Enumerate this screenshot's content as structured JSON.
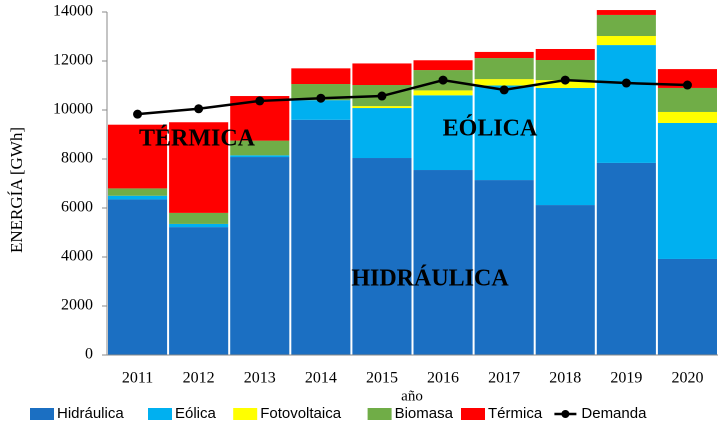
{
  "chart_data": {
    "type": "bar",
    "stacked": true,
    "y_label": "ENERGÍA [GWh]",
    "x_label": "año",
    "categories": [
      "2011",
      "2012",
      "2013",
      "2014",
      "2015",
      "2016",
      "2017",
      "2018",
      "2019",
      "2020"
    ],
    "series": [
      {
        "name": "Hidráulica",
        "color": "#1b6fc2",
        "values": [
          6350,
          5220,
          8080,
          9600,
          8040,
          7550,
          7140,
          6120,
          7840,
          3920
        ]
      },
      {
        "name": "Eólica",
        "color": "#00b0f0",
        "values": [
          150,
          130,
          70,
          800,
          2040,
          3050,
          3860,
          4780,
          4810,
          5550
        ]
      },
      {
        "name": "Fotovoltaica",
        "color": "#ffff00",
        "values": [
          0,
          0,
          0,
          0,
          80,
          200,
          260,
          320,
          370,
          450
        ]
      },
      {
        "name": "Biomasa",
        "color": "#70ad47",
        "values": [
          300,
          450,
          600,
          660,
          860,
          830,
          860,
          820,
          860,
          980
        ]
      },
      {
        "name": "Térmica",
        "color": "#ff0000",
        "values": [
          2600,
          3700,
          1820,
          640,
          880,
          400,
          250,
          450,
          200,
          770
        ]
      },
      {
        "name": "Demanda",
        "color": "#000000",
        "type": "line",
        "values": [
          9830,
          10050,
          10370,
          10480,
          10570,
          11220,
          10820,
          11220,
          11100,
          11020
        ]
      }
    ],
    "annotations": [
      "TÉRMICA",
      "EÓLICA",
      "HIDRÁULICA"
    ],
    "ylim": [
      0,
      14000
    ],
    "yticks": [
      0,
      2000,
      4000,
      6000,
      8000,
      10000,
      12000,
      14000
    ],
    "legend": "bottom"
  }
}
